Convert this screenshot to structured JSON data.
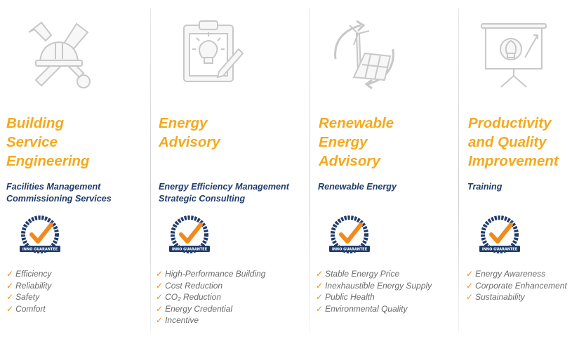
{
  "colors": {
    "title": "#f5a91c",
    "services": "#1f3c6b",
    "benefits": "#6b6b6b",
    "check": "#f08a1c",
    "badge_navy": "#1f3c6b"
  },
  "badge_text": "INNO GUARANTEE",
  "check_glyph": "✓",
  "columns": [
    {
      "icon": "tools-hardhat-icon",
      "title_lines": [
        "Building",
        "Service",
        "Engineering"
      ],
      "service_lines": [
        "Facilities Management",
        "Commissioning Services"
      ],
      "benefits": [
        "Efficiency",
        "Reliability",
        "Safety",
        "Comfort"
      ]
    },
    {
      "icon": "clipboard-lightbulb-icon",
      "title_lines": [
        "Energy",
        "Advisory"
      ],
      "service_lines": [
        "Energy Efficiency Management",
        "Strategic Consulting"
      ],
      "benefits": [
        "High-Performance Building",
        "Cost Reduction",
        "CO₂ Reduction",
        "Energy Credential",
        "Incentive"
      ]
    },
    {
      "icon": "wind-solar-cycle-icon",
      "title_lines": [
        "Renewable",
        "Energy",
        "Advisory"
      ],
      "service_lines": [
        "Renewable Energy"
      ],
      "benefits": [
        "Stable Energy Price",
        "Inexhaustible Energy Supply",
        "Public Health",
        "Environmental Quality"
      ]
    },
    {
      "icon": "presentation-board-icon",
      "title_lines": [
        "Productivity",
        "and Quality",
        "Improvement"
      ],
      "service_lines": [
        "Training"
      ],
      "benefits": [
        "Energy Awareness",
        "Corporate Enhancement",
        "Sustainability"
      ]
    }
  ]
}
